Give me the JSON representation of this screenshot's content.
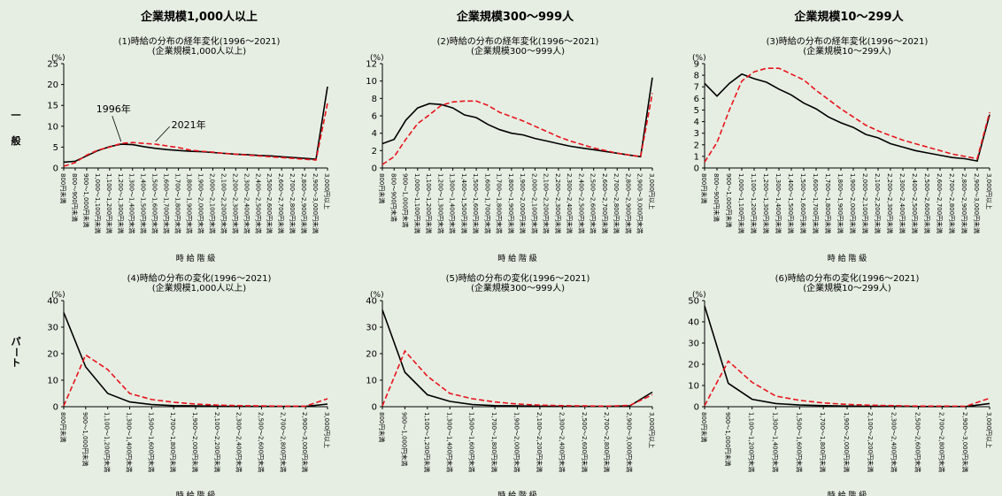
{
  "group_titles": [
    "企業規模1,000人以上",
    "企業規模300～999人",
    "企業規模10～299人"
  ],
  "row_labels": {
    "ippan": [
      "一",
      "般"
    ],
    "part": [
      "パ",
      "ー",
      "ト"
    ]
  },
  "colors": {
    "y1996": "#000000",
    "y2021": "#e8141c",
    "background": "#e6eee3"
  },
  "chart_data": [
    {
      "type": "line",
      "title": [
        "(1)時給の分布の経年変化(1996～2021)",
        "(企業規模1,000人以上)"
      ],
      "ylabel": "(%)",
      "xlabel": "時 給 階 級",
      "ylim": [
        0,
        25
      ],
      "yticks": [
        0,
        5,
        10,
        15,
        20,
        25
      ],
      "categories": [
        "800円未満",
        "800～900円未満",
        "900～1,000円未満",
        "1,000～1,100円未満",
        "1,100～1,200円未満",
        "1,200～1,300円未満",
        "1,300～1,400円未満",
        "1,400～1,500円未満",
        "1,500～1,600円未満",
        "1,600～1,700円未満",
        "1,700～1,800円未満",
        "1,800～1,900円未満",
        "1,900～2,000円未満",
        "2,000～2,100円未満",
        "2,100～2,200円未満",
        "2,200～2,300円未満",
        "2,300～2,400円未満",
        "2,400～2,500円未満",
        "2,500～2,600円未満",
        "2,600～2,700円未満",
        "2,700～2,800円未満",
        "2,800～2,900円未満",
        "2,900～3,000円未満",
        "3,000円以上"
      ],
      "series": [
        {
          "name": "1996年",
          "values": [
            1.4,
            1.6,
            2.9,
            4.2,
            5.1,
            5.7,
            5.6,
            5.1,
            4.7,
            4.4,
            4.2,
            4.0,
            3.9,
            3.7,
            3.5,
            3.3,
            3.2,
            3.0,
            2.9,
            2.7,
            2.5,
            2.3,
            2.1,
            19.5
          ]
        },
        {
          "name": "2021年",
          "values": [
            0.4,
            1.3,
            3.1,
            4.3,
            5.0,
            5.9,
            6.1,
            5.9,
            5.7,
            5.3,
            4.9,
            4.3,
            4.0,
            3.8,
            3.5,
            3.3,
            3.1,
            2.9,
            2.7,
            2.5,
            2.3,
            2.1,
            1.9,
            15.5
          ]
        }
      ],
      "annotations": [
        "1996年",
        "2021年"
      ]
    },
    {
      "type": "line",
      "title": [
        "(2)時給の分布の経年変化(1996～2021)",
        "(企業規模300～999人)"
      ],
      "ylabel": "(%)",
      "xlabel": "時 給 階 級",
      "ylim": [
        0,
        12
      ],
      "yticks": [
        0,
        2,
        4,
        6,
        8,
        10,
        12
      ],
      "categories": [
        "800円未満",
        "800～900円未満",
        "900～1,000円未満",
        "1,000～1,100円未満",
        "1,100～1,200円未満",
        "1,200～1,300円未満",
        "1,300～1,400円未満",
        "1,400～1,500円未満",
        "1,500～1,600円未満",
        "1,600～1,700円未満",
        "1,700～1,800円未満",
        "1,800～1,900円未満",
        "1,900～2,000円未満",
        "2,000～2,100円未満",
        "2,100～2,200円未満",
        "2,200～2,300円未満",
        "2,300～2,400円未満",
        "2,400～2,500円未満",
        "2,500～2,600円未満",
        "2,600～2,700円未満",
        "2,700～2,800円未満",
        "2,800～2,900円未満",
        "2,900～3,000円未満",
        "3,000円以上"
      ],
      "series": [
        {
          "name": "1996年",
          "values": [
            2.8,
            3.3,
            5.5,
            6.9,
            7.4,
            7.3,
            6.9,
            6.1,
            5.8,
            5.0,
            4.4,
            4.0,
            3.8,
            3.4,
            3.1,
            2.8,
            2.5,
            2.3,
            2.1,
            1.9,
            1.7,
            1.5,
            1.3,
            10.4
          ]
        },
        {
          "name": "2021年",
          "values": [
            0.4,
            1.3,
            3.3,
            5.1,
            6.1,
            7.2,
            7.6,
            7.7,
            7.7,
            7.2,
            6.4,
            5.9,
            5.4,
            4.8,
            4.2,
            3.6,
            3.1,
            2.7,
            2.3,
            2.0,
            1.7,
            1.5,
            1.3,
            8.6
          ]
        }
      ]
    },
    {
      "type": "line",
      "title": [
        "(3)時給の分布の経年変化(1996～2021)",
        "(企業規模10～299人)"
      ],
      "ylabel": "(%)",
      "xlabel": "時 給 階 級",
      "ylim": [
        0,
        9
      ],
      "yticks": [
        0,
        1,
        2,
        3,
        4,
        5,
        6,
        7,
        8,
        9
      ],
      "categories": [
        "800円未満",
        "800～900円未満",
        "900～1,000円未満",
        "1,000～1,100円未満",
        "1,100～1,200円未満",
        "1,200～1,300円未満",
        "1,300～1,400円未満",
        "1,400～1,500円未満",
        "1,500～1,600円未満",
        "1,600～1,700円未満",
        "1,700～1,800円未満",
        "1,800～1,900円未満",
        "1,900～2,000円未満",
        "2,000～2,100円未満",
        "2,100～2,200円未満",
        "2,200～2,300円未満",
        "2,300～2,400円未満",
        "2,400～2,500円未満",
        "2,500～2,600円未満",
        "2,600～2,700円未満",
        "2,700～2,800円未満",
        "2,800～2,900円未満",
        "2,900～3,000円未満",
        "3,000円以上"
      ],
      "series": [
        {
          "name": "1996年",
          "values": [
            7.3,
            6.2,
            7.3,
            8.1,
            7.7,
            7.4,
            6.8,
            6.3,
            5.6,
            5.1,
            4.4,
            3.9,
            3.5,
            2.9,
            2.6,
            2.1,
            1.8,
            1.5,
            1.3,
            1.1,
            0.9,
            0.8,
            0.6,
            4.6
          ]
        },
        {
          "name": "2021年",
          "values": [
            0.5,
            2.2,
            5.0,
            7.5,
            8.3,
            8.6,
            8.6,
            8.1,
            7.6,
            6.7,
            5.9,
            5.1,
            4.4,
            3.7,
            3.2,
            2.8,
            2.4,
            2.1,
            1.8,
            1.5,
            1.2,
            1.0,
            0.8,
            4.8
          ]
        }
      ]
    },
    {
      "type": "line",
      "title": [
        "(4)時給の分布の変化(1996～2021)",
        "(企業規模1,000人以上)"
      ],
      "ylabel": "(%)",
      "xlabel": "時 給 階 級",
      "ylim": [
        0,
        40
      ],
      "yticks": [
        0,
        10,
        20,
        30,
        40
      ],
      "categories": [
        "800円未満",
        "900～1,000円未満",
        "1,100～1,200円未満",
        "1,300～1,400円未満",
        "1,500～1,600円未満",
        "1,700～1,800円未満",
        "1,900～2,000円未満",
        "2,100～2,200円未満",
        "2,300～2,400円未満",
        "2,500～2,600円未満",
        "2,700～2,800円未満",
        "2,900～3,000円未満",
        "3,000円以上"
      ],
      "series": [
        {
          "name": "1996年",
          "values": [
            35.5,
            15.0,
            5.0,
            1.8,
            0.8,
            0.4,
            0.3,
            0.2,
            0.1,
            0.1,
            0.1,
            0.1,
            1.0
          ]
        },
        {
          "name": "2021年",
          "values": [
            0.3,
            19.5,
            14.0,
            5.0,
            2.7,
            1.7,
            1.0,
            0.6,
            0.4,
            0.3,
            0.2,
            0.2,
            3.0
          ]
        }
      ]
    },
    {
      "type": "line",
      "title": [
        "(5)時給の分布の変化(1996～2021)",
        "(企業規模300～999人)"
      ],
      "ylabel": "(%)",
      "xlabel": "時 給 階 級",
      "ylim": [
        0,
        40
      ],
      "yticks": [
        0,
        10,
        20,
        30,
        40
      ],
      "categories": [
        "800円未満",
        "900～1,000円未満",
        "1,100～1,200円未満",
        "1,300～1,400円未満",
        "1,500～1,600円未満",
        "1,700～1,800円未満",
        "1,900～2,000円未満",
        "2,100～2,200円未満",
        "2,300～2,400円未満",
        "2,500～2,600円未満",
        "2,700～2,800円未満",
        "2,900～3,000円未満",
        "3,000円以上"
      ],
      "series": [
        {
          "name": "1996年",
          "values": [
            36.5,
            13.0,
            4.5,
            2.0,
            0.8,
            0.4,
            0.3,
            0.2,
            0.1,
            0.1,
            0.1,
            0.3,
            5.5
          ]
        },
        {
          "name": "2021年",
          "values": [
            0.3,
            21.0,
            11.5,
            5.0,
            3.0,
            1.8,
            1.0,
            0.6,
            0.4,
            0.3,
            0.2,
            0.5,
            4.5
          ]
        }
      ]
    },
    {
      "type": "line",
      "title": [
        "(6)時給の分布の変化(1996～2021)",
        "(企業規模10～299人)"
      ],
      "ylabel": "(%)",
      "xlabel": "時 給 階 級",
      "ylim": [
        0,
        50
      ],
      "yticks": [
        0,
        10,
        20,
        30,
        40,
        50
      ],
      "categories": [
        "800円未満",
        "900～1,000円未満",
        "1,100～1,200円未満",
        "1,300～1,400円未満",
        "1,500～1,600円未満",
        "1,700～1,800円未満",
        "1,900～2,000円未満",
        "2,100～2,200円未満",
        "2,300～2,400円未満",
        "2,500～2,600円未満",
        "2,700～2,800円未満",
        "2,900～3,000円未満",
        "3,000円以上"
      ],
      "series": [
        {
          "name": "1996年",
          "values": [
            47.5,
            11.0,
            3.5,
            1.5,
            0.8,
            0.5,
            0.3,
            0.2,
            0.2,
            0.1,
            0.1,
            0.1,
            1.5
          ]
        },
        {
          "name": "2021年",
          "values": [
            0.5,
            21.5,
            11.5,
            5.0,
            3.0,
            1.8,
            1.1,
            0.7,
            0.5,
            0.3,
            0.3,
            0.2,
            4.0
          ]
        }
      ]
    }
  ]
}
